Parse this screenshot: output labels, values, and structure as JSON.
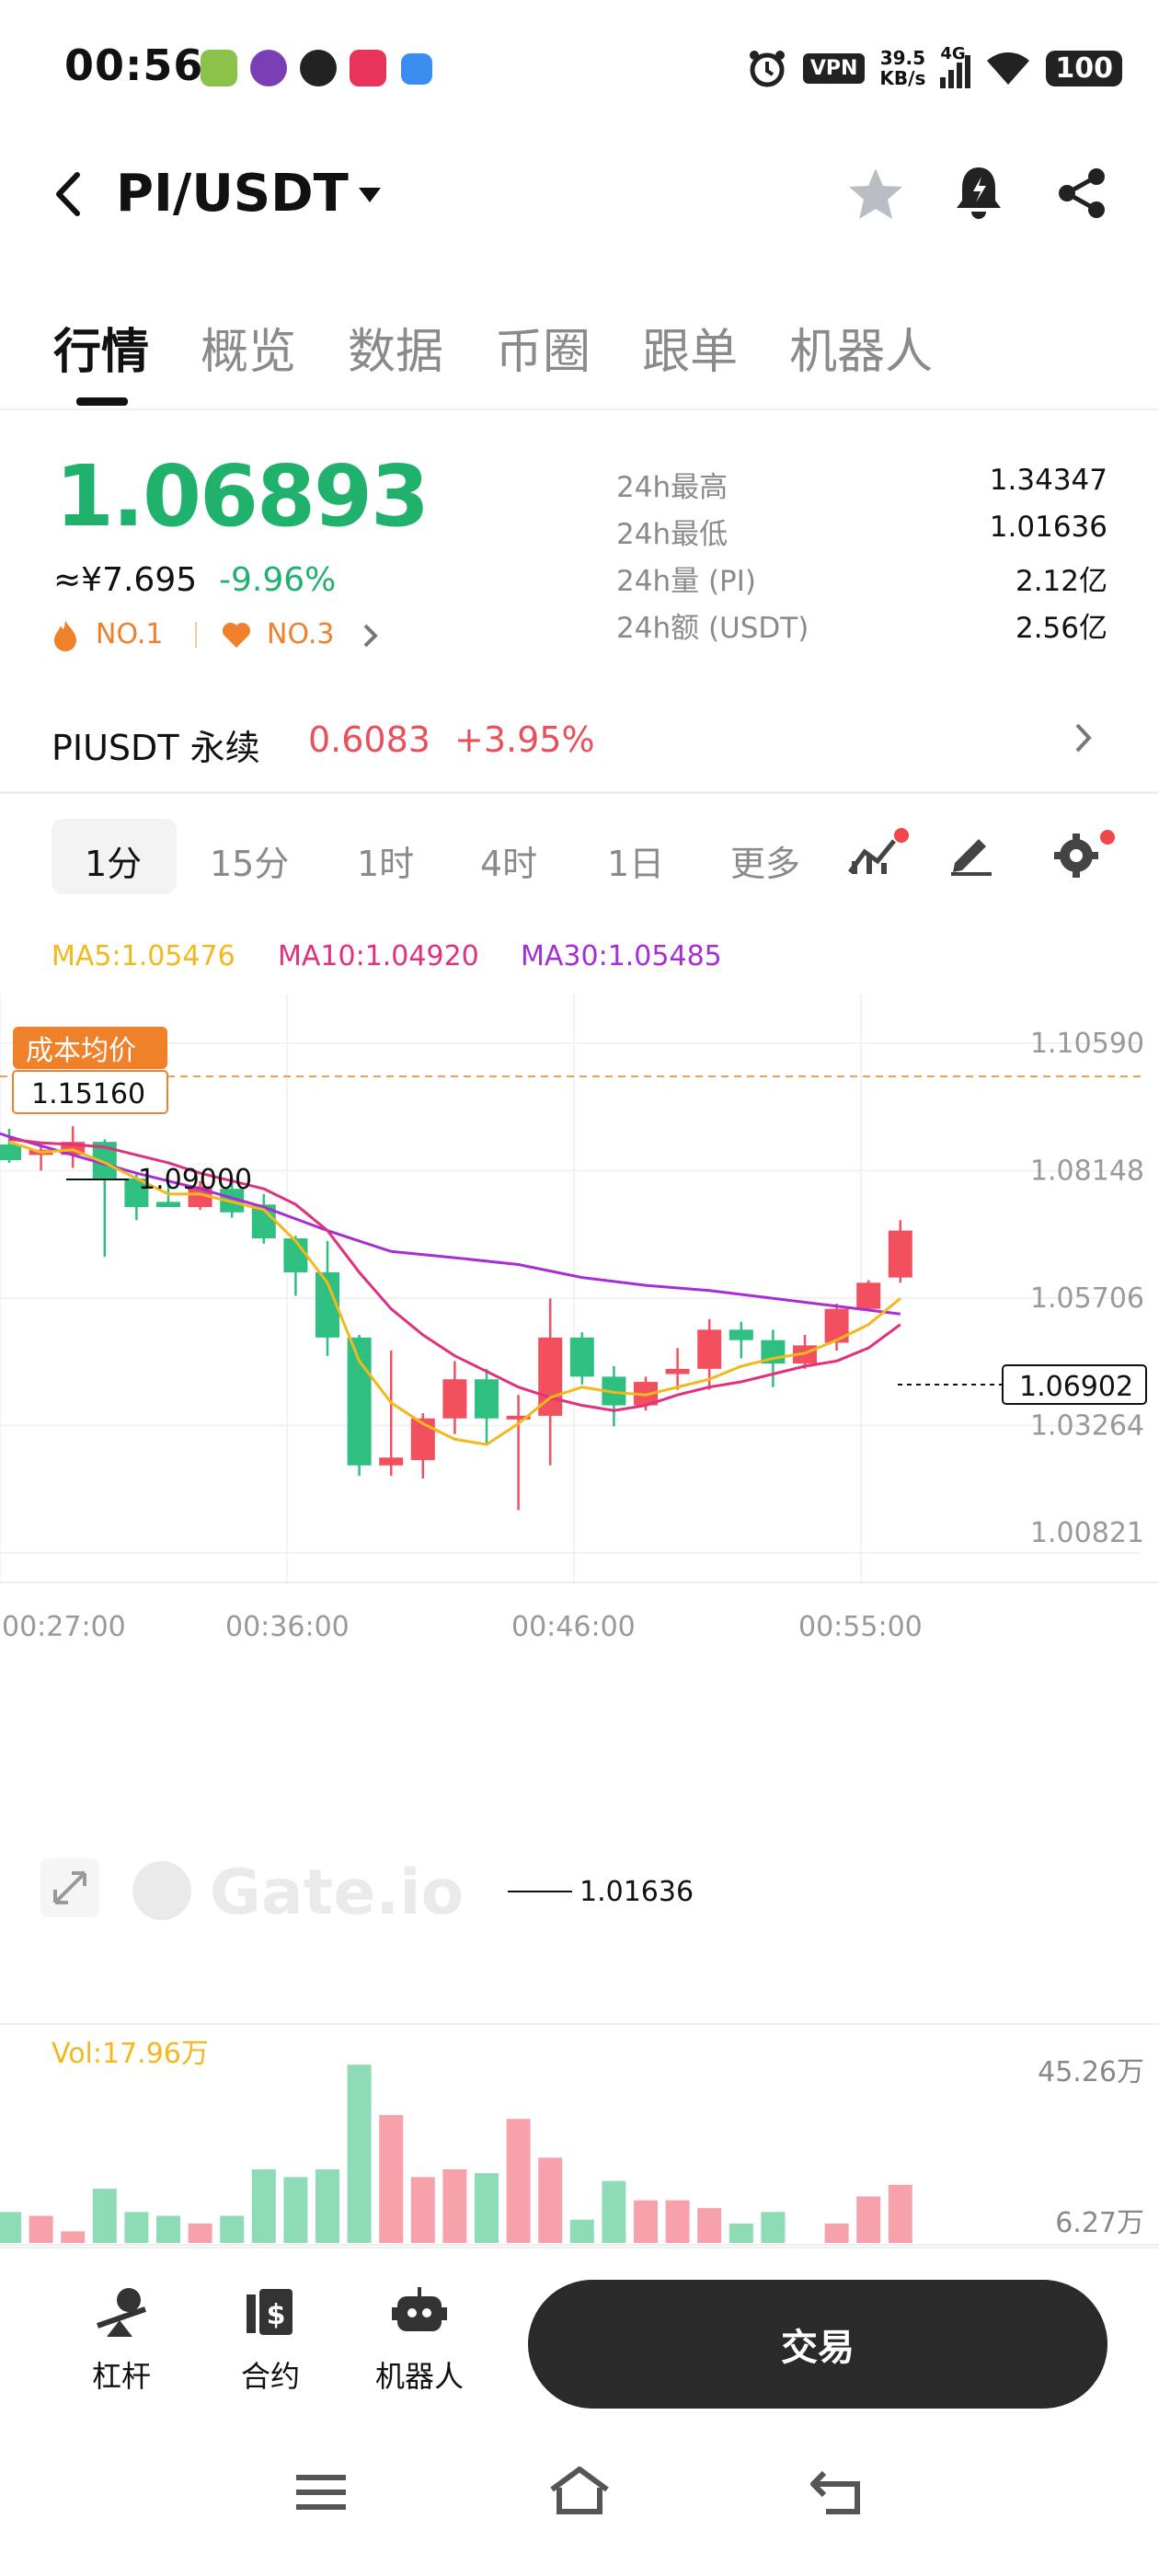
{
  "status_bar": {
    "time": "00:56",
    "vpn": "VPN",
    "speed_value": "39.5",
    "speed_unit": "KB/s",
    "network": "4G",
    "battery": "100"
  },
  "header": {
    "back_icon": "chevron-left-icon",
    "pair": "PI/USDT",
    "dropdown_icon": "caret-down-icon",
    "icons": [
      "star-icon",
      "bell-icon",
      "share-icon"
    ]
  },
  "tabs": [
    {
      "label": "行情",
      "active": true
    },
    {
      "label": "概览"
    },
    {
      "label": "数据"
    },
    {
      "label": "币圈"
    },
    {
      "label": "跟单"
    },
    {
      "label": "机器人"
    }
  ],
  "price": {
    "last": "1.06893",
    "cny": "≈¥7.695",
    "change": "-9.96%",
    "rank1": "NO.1",
    "rank2": "NO.3"
  },
  "stats": [
    {
      "label": "24h最高",
      "value": "1.34347"
    },
    {
      "label": "24h最低",
      "value": "1.01636"
    },
    {
      "label": "24h量 (PI)",
      "value": "2.12亿"
    },
    {
      "label": "24h额 (USDT)",
      "value": "2.56亿"
    }
  ],
  "perpetual": {
    "name": "PIUSDT 永续",
    "price": "0.6083",
    "change": "+3.95%"
  },
  "intervals": [
    {
      "label": "1分",
      "active": true
    },
    {
      "label": "15分"
    },
    {
      "label": "1时"
    },
    {
      "label": "4时"
    },
    {
      "label": "1日"
    },
    {
      "label": "更多"
    }
  ],
  "ma": {
    "ma5": "MA5:1.05476",
    "ma10": "MA10:1.04920",
    "ma30": "MA30:1.05485"
  },
  "colors": {
    "up": "#f2505f",
    "down": "#2fbf80",
    "ma5": "#f2b81c",
    "ma10": "#e0317f",
    "ma30": "#a72ed4",
    "accent": "#f0812b"
  },
  "chart_data": {
    "type": "candlestick",
    "y_ticks": [
      "1.10590",
      "1.08148",
      "1.05706",
      "1.03264",
      "1.00821"
    ],
    "y_range": [
      1.00821,
      1.1059
    ],
    "x_ticks": [
      "00:27:00",
      "00:36:00",
      "00:46:00",
      "00:55:00"
    ],
    "cost_label": "成本均价",
    "cost_value": "1.15160",
    "high_label": "1.09000",
    "low_label": "1.01636",
    "last_label": "1.06902",
    "watermark": "Gate.io",
    "candles": [
      {
        "o": 1.0865,
        "h": 1.0895,
        "l": 1.083,
        "c": 1.0835
      },
      {
        "o": 1.0845,
        "h": 1.0865,
        "l": 1.0815,
        "c": 1.0855
      },
      {
        "o": 1.0845,
        "h": 1.09,
        "l": 1.082,
        "c": 1.087
      },
      {
        "o": 1.087,
        "h": 1.0875,
        "l": 1.065,
        "c": 1.08
      },
      {
        "o": 1.08,
        "h": 1.081,
        "l": 1.072,
        "c": 1.0745
      },
      {
        "o": 1.0755,
        "h": 1.079,
        "l": 1.0745,
        "c": 1.0745
      },
      {
        "o": 1.0745,
        "h": 1.0795,
        "l": 1.074,
        "c": 1.0785
      },
      {
        "o": 1.078,
        "h": 1.08,
        "l": 1.0725,
        "c": 1.0735
      },
      {
        "o": 1.075,
        "h": 1.077,
        "l": 1.0675,
        "c": 1.0685
      },
      {
        "o": 1.0685,
        "h": 1.069,
        "l": 1.0575,
        "c": 1.062
      },
      {
        "o": 1.062,
        "h": 1.068,
        "l": 1.046,
        "c": 1.0495
      },
      {
        "o": 1.0495,
        "h": 1.05,
        "l": 1.023,
        "c": 1.025
      },
      {
        "o": 1.025,
        "h": 1.047,
        "l": 1.023,
        "c": 1.0265
      },
      {
        "o": 1.026,
        "h": 1.035,
        "l": 1.0225,
        "c": 1.034
      },
      {
        "o": 1.034,
        "h": 1.045,
        "l": 1.031,
        "c": 1.0415
      },
      {
        "o": 1.0415,
        "h": 1.0435,
        "l": 1.029,
        "c": 1.034
      },
      {
        "o": 1.034,
        "h": 1.0385,
        "l": 1.0164,
        "c": 1.0345
      },
      {
        "o": 1.0345,
        "h": 1.057,
        "l": 1.025,
        "c": 1.0495
      },
      {
        "o": 1.0495,
        "h": 1.0505,
        "l": 1.0405,
        "c": 1.042
      },
      {
        "o": 1.042,
        "h": 1.044,
        "l": 1.0325,
        "c": 1.0365
      },
      {
        "o": 1.0365,
        "h": 1.042,
        "l": 1.0355,
        "c": 1.041
      },
      {
        "o": 1.0425,
        "h": 1.0475,
        "l": 1.0395,
        "c": 1.0435
      },
      {
        "o": 1.0435,
        "h": 1.053,
        "l": 1.0395,
        "c": 1.051
      },
      {
        "o": 1.051,
        "h": 1.0525,
        "l": 1.0455,
        "c": 1.049
      },
      {
        "o": 1.049,
        "h": 1.051,
        "l": 1.04,
        "c": 1.0445
      },
      {
        "o": 1.0445,
        "h": 1.05,
        "l": 1.0435,
        "c": 1.048
      },
      {
        "o": 1.0485,
        "h": 1.056,
        "l": 1.047,
        "c": 1.055
      },
      {
        "o": 1.055,
        "h": 1.0605,
        "l": 1.0545,
        "c": 1.06
      },
      {
        "o": 1.061,
        "h": 1.072,
        "l": 1.06,
        "c": 1.07
      }
    ],
    "ma5_points": [
      [
        0,
        1.087
      ],
      [
        1,
        1.085
      ],
      [
        2,
        1.0855
      ],
      [
        3,
        1.083
      ],
      [
        4,
        1.08
      ],
      [
        5,
        1.077
      ],
      [
        6,
        1.077
      ],
      [
        7,
        1.0755
      ],
      [
        8,
        1.074
      ],
      [
        9,
        1.068
      ],
      [
        10,
        1.06
      ],
      [
        11,
        1.045
      ],
      [
        12,
        1.037
      ],
      [
        13,
        1.033
      ],
      [
        14,
        1.03
      ],
      [
        15,
        1.029
      ],
      [
        16,
        1.033
      ],
      [
        17,
        1.038
      ],
      [
        18,
        1.04
      ],
      [
        19,
        1.039
      ],
      [
        20,
        1.0385
      ],
      [
        21,
        1.04
      ],
      [
        22,
        1.0415
      ],
      [
        23,
        1.044
      ],
      [
        24,
        1.0455
      ],
      [
        25,
        1.0465
      ],
      [
        26,
        1.049
      ],
      [
        27,
        1.052
      ],
      [
        28,
        1.057
      ]
    ],
    "ma10_points": [
      [
        0,
        1.0875
      ],
      [
        1,
        1.0868
      ],
      [
        2,
        1.0865
      ],
      [
        3,
        1.086
      ],
      [
        4,
        1.0845
      ],
      [
        5,
        1.083
      ],
      [
        6,
        1.081
      ],
      [
        7,
        1.0795
      ],
      [
        8,
        1.078
      ],
      [
        9,
        1.075
      ],
      [
        10,
        1.07
      ],
      [
        11,
        1.062
      ],
      [
        12,
        1.055
      ],
      [
        13,
        1.05
      ],
      [
        14,
        1.046
      ],
      [
        15,
        1.043
      ],
      [
        16,
        1.04
      ],
      [
        17,
        1.038
      ],
      [
        18,
        1.0365
      ],
      [
        19,
        1.0355
      ],
      [
        20,
        1.0365
      ],
      [
        21,
        1.0385
      ],
      [
        22,
        1.04
      ],
      [
        23,
        1.041
      ],
      [
        24,
        1.0425
      ],
      [
        25,
        1.044
      ],
      [
        26,
        1.045
      ],
      [
        27,
        1.0475
      ],
      [
        28,
        1.052
      ]
    ],
    "ma30_points": [
      [
        -1,
        1.09
      ],
      [
        0,
        1.088
      ],
      [
        2,
        1.0845
      ],
      [
        4,
        1.081
      ],
      [
        6,
        1.078
      ],
      [
        8,
        1.0745
      ],
      [
        10,
        1.07
      ],
      [
        12,
        1.066
      ],
      [
        14,
        1.0648
      ],
      [
        16,
        1.0635
      ],
      [
        18,
        1.061
      ],
      [
        20,
        1.0595
      ],
      [
        22,
        1.0585
      ],
      [
        24,
        1.057
      ],
      [
        26,
        1.0555
      ],
      [
        28,
        1.054
      ]
    ],
    "vol_label": "Vol:17.96万",
    "vol_ticks": [
      "45.26万",
      "6.27万"
    ],
    "vol_range": [
      0,
      47
    ],
    "volumes": [
      8,
      7,
      3,
      14,
      8,
      7,
      5,
      7,
      19,
      17,
      19,
      46,
      33,
      17,
      19,
      18,
      32,
      22,
      6,
      16,
      11,
      11,
      9,
      5,
      8,
      0,
      5,
      12,
      15
    ]
  },
  "bottom": {
    "items": [
      {
        "label": "杠杆",
        "icon": "leverage-icon"
      },
      {
        "label": "合约",
        "icon": "contract-icon"
      },
      {
        "label": "机器人",
        "icon": "robot-icon"
      }
    ],
    "trade": "交易"
  }
}
